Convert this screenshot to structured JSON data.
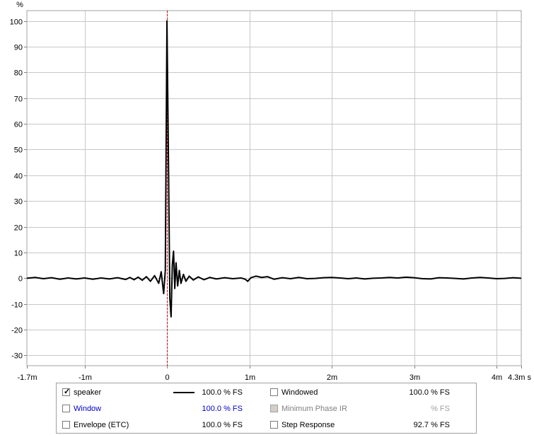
{
  "chart_data": {
    "type": "line",
    "y_unit": "%",
    "x_unit": "s",
    "xlim": [
      -1.7,
      4.3
    ],
    "ylim": [
      -34,
      104
    ],
    "x_ticks": [
      {
        "v": -1.7,
        "label": "-1.7m"
      },
      {
        "v": -1,
        "label": "-1m"
      },
      {
        "v": 0,
        "label": "0"
      },
      {
        "v": 1,
        "label": "1m"
      },
      {
        "v": 2,
        "label": "2m"
      },
      {
        "v": 3,
        "label": "3m"
      },
      {
        "v": 4,
        "label": "4m"
      },
      {
        "v": 4.3,
        "label": "4.3m s"
      }
    ],
    "y_ticks": [
      100,
      90,
      80,
      70,
      60,
      50,
      40,
      30,
      20,
      10,
      0,
      -10,
      -20,
      -30
    ],
    "grid": true,
    "marker_x": 0,
    "series": [
      {
        "name": "speaker",
        "color": "#000000",
        "points": [
          [
            -1.7,
            0
          ],
          [
            -1.6,
            0.3
          ],
          [
            -1.5,
            -0.2
          ],
          [
            -1.4,
            0.2
          ],
          [
            -1.3,
            -0.4
          ],
          [
            -1.2,
            0.1
          ],
          [
            -1.1,
            -0.3
          ],
          [
            -1.0,
            0.1
          ],
          [
            -0.9,
            -0.4
          ],
          [
            -0.8,
            0.1
          ],
          [
            -0.7,
            -0.3
          ],
          [
            -0.6,
            0.2
          ],
          [
            -0.5,
            -0.5
          ],
          [
            -0.45,
            0.3
          ],
          [
            -0.4,
            -0.6
          ],
          [
            -0.35,
            0.4
          ],
          [
            -0.3,
            -0.8
          ],
          [
            -0.25,
            0.6
          ],
          [
            -0.2,
            -1.2
          ],
          [
            -0.15,
            1.0
          ],
          [
            -0.1,
            -2.0
          ],
          [
            -0.07,
            2.5
          ],
          [
            -0.04,
            -6.0
          ],
          [
            -0.02,
            3.0
          ],
          [
            0,
            100
          ],
          [
            0.02,
            40
          ],
          [
            0.035,
            -8
          ],
          [
            0.05,
            -15
          ],
          [
            0.065,
            5
          ],
          [
            0.08,
            10.5
          ],
          [
            0.095,
            -4
          ],
          [
            0.11,
            6
          ],
          [
            0.13,
            -3
          ],
          [
            0.15,
            3
          ],
          [
            0.17,
            -2
          ],
          [
            0.2,
            1.5
          ],
          [
            0.23,
            -1.2
          ],
          [
            0.27,
            0.8
          ],
          [
            0.32,
            -0.7
          ],
          [
            0.38,
            0.5
          ],
          [
            0.45,
            -0.6
          ],
          [
            0.52,
            0.3
          ],
          [
            0.6,
            -0.3
          ],
          [
            0.7,
            0.2
          ],
          [
            0.8,
            -0.2
          ],
          [
            0.9,
            0.1
          ],
          [
            0.95,
            -0.4
          ],
          [
            0.98,
            -1.2
          ],
          [
            1.02,
            0.2
          ],
          [
            1.08,
            0.8
          ],
          [
            1.15,
            0.3
          ],
          [
            1.22,
            0.6
          ],
          [
            1.3,
            -0.4
          ],
          [
            1.4,
            0.2
          ],
          [
            1.5,
            -0.2
          ],
          [
            1.6,
            0.3
          ],
          [
            1.7,
            -0.2
          ],
          [
            1.8,
            -0.1
          ],
          [
            1.9,
            0.2
          ],
          [
            2.0,
            0.3
          ],
          [
            2.1,
            0.1
          ],
          [
            2.2,
            -0.2
          ],
          [
            2.3,
            0.1
          ],
          [
            2.4,
            -0.3
          ],
          [
            2.5,
            0
          ],
          [
            2.6,
            0.1
          ],
          [
            2.7,
            0.3
          ],
          [
            2.8,
            0.1
          ],
          [
            2.9,
            0.4
          ],
          [
            3.0,
            0.2
          ],
          [
            3.1,
            -0.2
          ],
          [
            3.2,
            -0.3
          ],
          [
            3.3,
            0.2
          ],
          [
            3.4,
            0.1
          ],
          [
            3.5,
            -0.1
          ],
          [
            3.6,
            -0.3
          ],
          [
            3.7,
            0.1
          ],
          [
            3.8,
            0.3
          ],
          [
            3.9,
            0.1
          ],
          [
            4.0,
            -0.2
          ],
          [
            4.1,
            -0.1
          ],
          [
            4.2,
            0.2
          ],
          [
            4.3,
            0
          ]
        ]
      }
    ]
  },
  "legend": {
    "rows": [
      {
        "label": "speaker",
        "checked": true,
        "color": "#000000",
        "swatch": true,
        "value": "100.0 % FS",
        "value_color": "#000000"
      },
      {
        "label": "Window",
        "checked": false,
        "color": "#0000cc",
        "swatch": false,
        "value": "100.0 % FS",
        "value_color": "#0000cc"
      },
      {
        "label": "Envelope (ETC)",
        "checked": false,
        "color": "#000000",
        "swatch": false,
        "value": "100.0 % FS",
        "value_color": "#000000"
      }
    ],
    "rows_right": [
      {
        "label": "Windowed",
        "checked": false,
        "disabled": false,
        "color": "#000000",
        "value": "100.0 % FS",
        "value_color": "#000000"
      },
      {
        "label": "Minimum Phase IR",
        "checked": false,
        "disabled": true,
        "color": "#808080",
        "value": "% FS",
        "value_color": "#a0a0a0"
      },
      {
        "label": "Step Response",
        "checked": false,
        "disabled": false,
        "color": "#000000",
        "value": "92.7 % FS",
        "value_color": "#000000"
      }
    ]
  }
}
